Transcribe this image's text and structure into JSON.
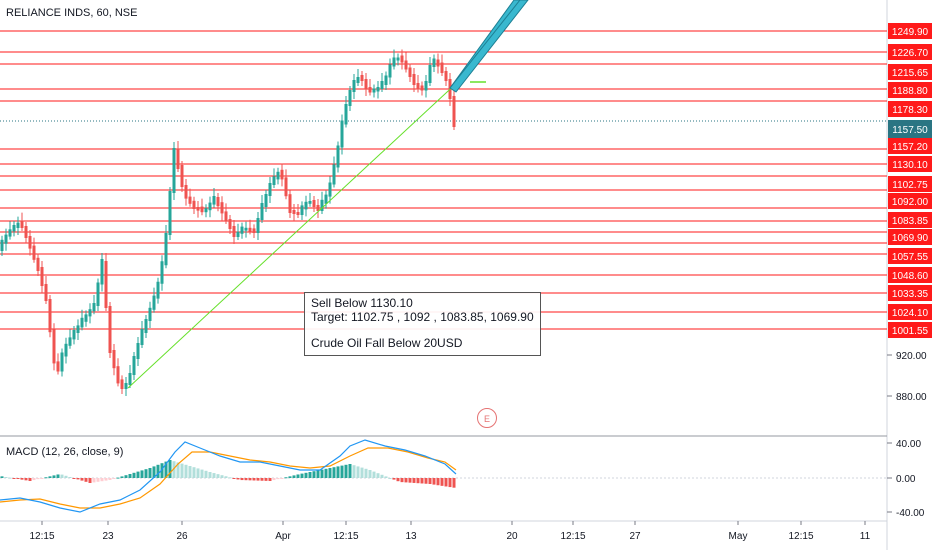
{
  "header": {
    "symbol_title": "RELIANCE INDS, 60, NSE"
  },
  "note": {
    "line1": "Sell Below 1130.10",
    "line2": "Target: 1102.75 , 1092 , 1083.85, 1069.90",
    "line3": "Crude Oil Fall Below 20USD"
  },
  "event_marker": {
    "label": "E"
  },
  "price_scale": {
    "levels": [
      "1249.90",
      "1226.70",
      "1215.65",
      "1188.80",
      "1178.30",
      "1157.20",
      "1130.10",
      "1102.75",
      "1092.00",
      "1083.85",
      "1069.90",
      "1057.55",
      "1048.60",
      "1033.35",
      "1024.10",
      "1001.55"
    ],
    "level_color": "#ff1a1a",
    "last_price": "1157.50",
    "last_price_color": "#2a7583",
    "plain_ticks": [
      "920.00",
      "880.00"
    ]
  },
  "macd": {
    "title": "MACD (12, 26, close, 9)",
    "scale": [
      "40.00",
      "0.00",
      "-40.00"
    ]
  },
  "time_axis": {
    "labels": [
      "12:15",
      "23",
      "26",
      "Apr",
      "12:15",
      "13",
      "20",
      "12:15",
      "27",
      "May",
      "12:15",
      "11"
    ]
  },
  "colors": {
    "up": "#26a69a",
    "down": "#ef5350",
    "trendline": "#66e02a",
    "macd_line": "#2196f3",
    "signal_line": "#ff9800"
  },
  "chart_data": {
    "type": "candlestick",
    "title": "RELIANCE INDS, 60, NSE",
    "y_scale": "price",
    "horizontal_levels": [
      1249.9,
      1226.7,
      1215.65,
      1188.8,
      1178.3,
      1157.2,
      1130.1,
      1102.75,
      1092.0,
      1083.85,
      1069.9,
      1057.55,
      1048.6,
      1033.35,
      1024.1,
      1001.55
    ],
    "last_price": 1157.5,
    "indicator": "MACD (12, 26, close, 9)"
  }
}
